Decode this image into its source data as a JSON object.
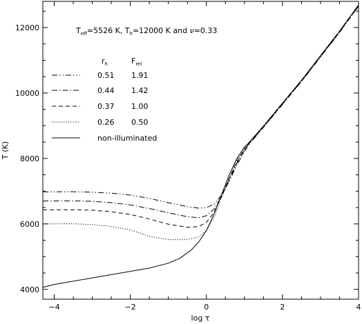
{
  "chart_data": {
    "type": "line",
    "title": "",
    "annotation": {
      "line1_parts": [
        "T",
        "eff",
        "=5526 K, T",
        "h",
        "=12000 K and ",
        "ν",
        "=0.33"
      ]
    },
    "xlabel": "log τ",
    "ylabel": "T (K)",
    "xlim": [
      -4.3,
      4.0
    ],
    "ylim": [
      3700,
      12800
    ],
    "xticks": [
      -4,
      -2,
      0,
      2,
      4
    ],
    "yticks": [
      4000,
      6000,
      8000,
      10000,
      12000
    ],
    "grid": false,
    "legend": {
      "placement": "upper-left",
      "col_header_r": "r",
      "col_header_r_sub": "h",
      "col_header_f": "F",
      "col_header_f_sub": "rel",
      "entries": [
        {
          "r": "0.51",
          "f": "1.91",
          "style": "dashdotdot"
        },
        {
          "r": "0.44",
          "f": "1.42",
          "style": "dashdot"
        },
        {
          "r": "0.37",
          "f": "1.00",
          "style": "dashed"
        },
        {
          "r": "0.26",
          "f": "0.50",
          "style": "dotted"
        },
        {
          "r": "",
          "f": "",
          "label": "non-illuminated",
          "style": "solid"
        }
      ]
    },
    "series": [
      {
        "name": "0.51",
        "style": "dashdotdot",
        "x": [
          -4.3,
          -3.5,
          -3.0,
          -2.5,
          -2.0,
          -1.5,
          -1.0,
          -0.5,
          -0.2,
          0.0,
          0.2,
          0.4,
          0.6,
          0.8,
          1.0,
          1.1,
          1.5,
          2.0,
          2.5,
          3.0,
          3.5,
          4.0
        ],
        "y": [
          6980,
          6985,
          6970,
          6940,
          6880,
          6780,
          6650,
          6530,
          6480,
          6500,
          6600,
          6880,
          7300,
          7800,
          8200,
          8400,
          8950,
          9650,
          10350,
          11100,
          11850,
          12650
        ]
      },
      {
        "name": "0.44",
        "style": "dashdot",
        "x": [
          -4.3,
          -3.5,
          -3.0,
          -2.5,
          -2.0,
          -1.5,
          -1.0,
          -0.5,
          -0.2,
          0.0,
          0.2,
          0.4,
          0.6,
          0.8,
          1.0,
          1.1,
          1.5,
          2.0,
          2.5,
          3.0,
          3.5,
          4.0
        ],
        "y": [
          6700,
          6705,
          6690,
          6650,
          6580,
          6470,
          6340,
          6220,
          6190,
          6250,
          6450,
          6850,
          7350,
          7850,
          8250,
          8420,
          8960,
          9660,
          10360,
          11110,
          11860,
          12660
        ]
      },
      {
        "name": "0.37",
        "style": "dashed",
        "x": [
          -4.3,
          -3.5,
          -3.0,
          -2.5,
          -2.0,
          -1.5,
          -1.0,
          -0.5,
          -0.2,
          0.0,
          0.2,
          0.4,
          0.6,
          0.8,
          1.0,
          1.1,
          1.5,
          2.0,
          2.5,
          3.0,
          3.5,
          4.0
        ],
        "y": [
          6430,
          6435,
          6420,
          6370,
          6290,
          6150,
          5990,
          5900,
          5920,
          6050,
          6350,
          6850,
          7400,
          7900,
          8280,
          8440,
          8970,
          9670,
          10370,
          11120,
          11870,
          12670
        ]
      },
      {
        "name": "0.26",
        "style": "dotted",
        "x": [
          -4.3,
          -3.5,
          -3.0,
          -2.5,
          -2.0,
          -1.5,
          -1.0,
          -0.5,
          -0.2,
          0.0,
          0.2,
          0.4,
          0.6,
          0.8,
          1.0,
          1.1,
          1.5,
          2.0,
          2.5,
          3.0,
          3.5,
          4.0
        ],
        "y": [
          6000,
          6005,
          5980,
          5920,
          5820,
          5620,
          5520,
          5520,
          5600,
          5800,
          6200,
          6800,
          7400,
          7950,
          8300,
          8450,
          8980,
          9680,
          10380,
          11130,
          11880,
          12680
        ]
      },
      {
        "name": "non-illuminated",
        "style": "solid",
        "x": [
          -4.3,
          -4.0,
          -3.5,
          -3.0,
          -2.5,
          -2.0,
          -1.5,
          -1.0,
          -0.7,
          -0.4,
          -0.2,
          0.0,
          0.2,
          0.4,
          0.6,
          0.8,
          1.0,
          1.1,
          1.5,
          2.0,
          2.5,
          3.0,
          3.5,
          4.0
        ],
        "y": [
          4060,
          4150,
          4250,
          4350,
          4450,
          4550,
          4650,
          4800,
          4950,
          5200,
          5450,
          5800,
          6300,
          6900,
          7500,
          8000,
          8350,
          8460,
          8990,
          9690,
          10390,
          11140,
          11890,
          12690
        ]
      }
    ]
  }
}
